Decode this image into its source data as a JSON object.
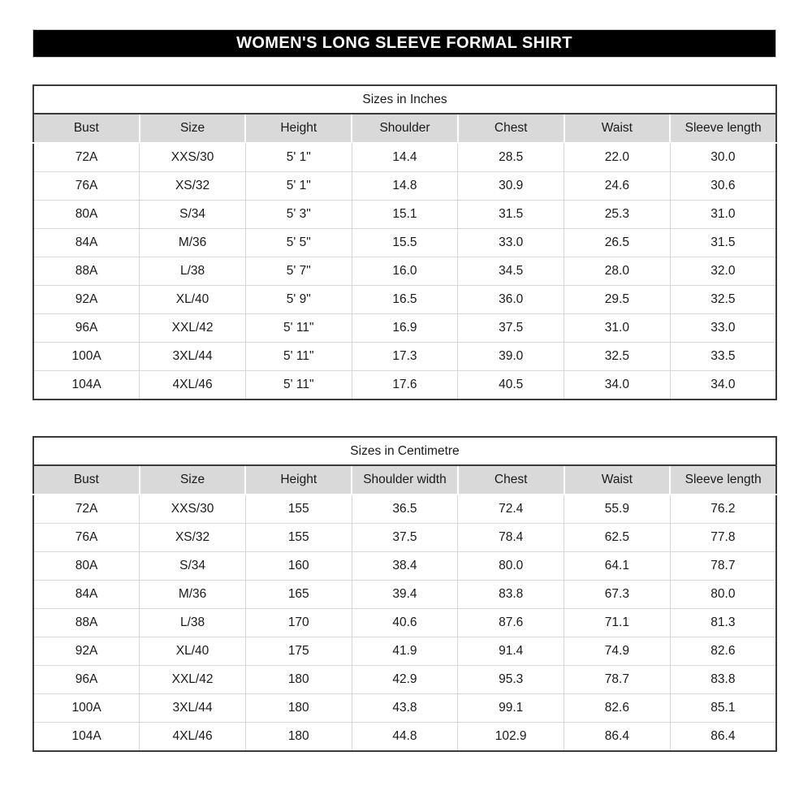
{
  "banner": {
    "title": "WOMEN'S LONG SLEEVE FORMAL SHIRT"
  },
  "tables": [
    {
      "title": "Sizes in Inches",
      "headers": [
        "Bust",
        "Size",
        "Height",
        "Shoulder",
        "Chest",
        "Waist",
        "Sleeve length"
      ],
      "rows": [
        [
          "72A",
          "XXS/30",
          "5' 1\"",
          "14.4",
          "28.5",
          "22.0",
          "30.0"
        ],
        [
          "76A",
          "XS/32",
          "5' 1\"",
          "14.8",
          "30.9",
          "24.6",
          "30.6"
        ],
        [
          "80A",
          "S/34",
          "5' 3\"",
          "15.1",
          "31.5",
          "25.3",
          "31.0"
        ],
        [
          "84A",
          "M/36",
          "5' 5\"",
          "15.5",
          "33.0",
          "26.5",
          "31.5"
        ],
        [
          "88A",
          "L/38",
          "5' 7\"",
          "16.0",
          "34.5",
          "28.0",
          "32.0"
        ],
        [
          "92A",
          "XL/40",
          "5' 9\"",
          "16.5",
          "36.0",
          "29.5",
          "32.5"
        ],
        [
          "96A",
          "XXL/42",
          "5' 11\"",
          "16.9",
          "37.5",
          "31.0",
          "33.0"
        ],
        [
          "100A",
          "3XL/44",
          "5' 11\"",
          "17.3",
          "39.0",
          "32.5",
          "33.5"
        ],
        [
          "104A",
          "4XL/46",
          "5' 11\"",
          "17.6",
          "40.5",
          "34.0",
          "34.0"
        ]
      ]
    },
    {
      "title": "Sizes in Centimetre",
      "headers": [
        "Bust",
        "Size",
        "Height",
        "Shoulder width",
        "Chest",
        "Waist",
        "Sleeve length"
      ],
      "rows": [
        [
          "72A",
          "XXS/30",
          "155",
          "36.5",
          "72.4",
          "55.9",
          "76.2"
        ],
        [
          "76A",
          "XS/32",
          "155",
          "37.5",
          "78.4",
          "62.5",
          "77.8"
        ],
        [
          "80A",
          "S/34",
          "160",
          "38.4",
          "80.0",
          "64.1",
          "78.7"
        ],
        [
          "84A",
          "M/36",
          "165",
          "39.4",
          "83.8",
          "67.3",
          "80.0"
        ],
        [
          "88A",
          "L/38",
          "170",
          "40.6",
          "87.6",
          "71.1",
          "81.3"
        ],
        [
          "92A",
          "XL/40",
          "175",
          "41.9",
          "91.4",
          "74.9",
          "82.6"
        ],
        [
          "96A",
          "XXL/42",
          "180",
          "42.9",
          "95.3",
          "78.7",
          "83.8"
        ],
        [
          "100A",
          "3XL/44",
          "180",
          "43.8",
          "99.1",
          "82.6",
          "85.1"
        ],
        [
          "104A",
          "4XL/46",
          "180",
          "44.8",
          "102.9",
          "86.4",
          "86.4"
        ]
      ]
    }
  ],
  "colors": {
    "banner_bg": "#000000",
    "banner_text": "#ffffff",
    "header_row_bg": "#d9d9d9",
    "table_border": "#3b3b3b",
    "gridline": "#d9d9d9"
  }
}
